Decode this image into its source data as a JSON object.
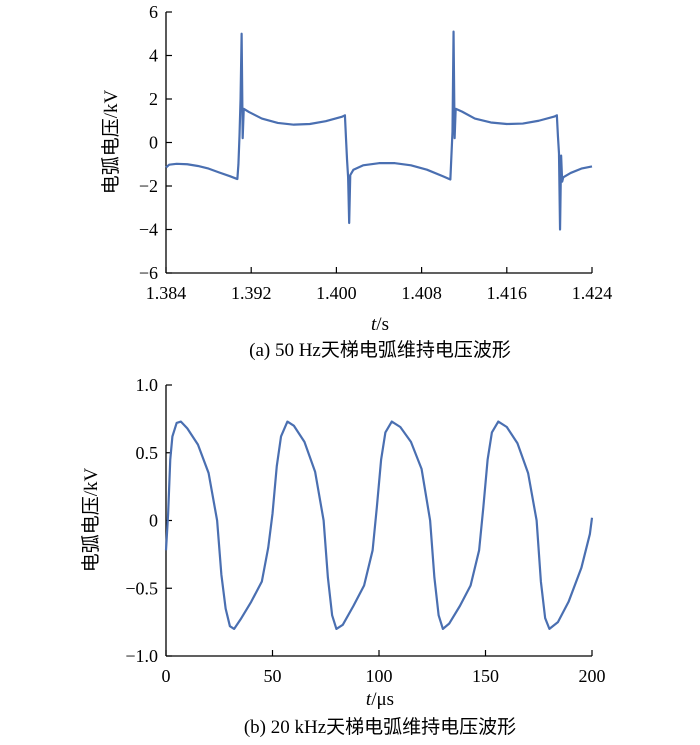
{
  "chart_data": [
    {
      "type": "line",
      "caption": "(a)  50 Hz天梯电弧维持电压波形",
      "ylabel": "电弧电压/kV",
      "xlabel_italic": "t",
      "xlabel_unit": "/s",
      "xlim": [
        1.384,
        1.424
      ],
      "ylim": [
        -6,
        6
      ],
      "xtick_labels": [
        "1.384",
        "1.392",
        "1.400",
        "1.408",
        "1.416",
        "1.424"
      ],
      "ytick_labels": [
        "6",
        "4",
        "2",
        "0",
        "−2",
        "−4",
        "−6"
      ],
      "grid": false,
      "color": "#4a6fb1",
      "series": [
        {
          "values": [
            [
              1.384,
              -1.15
            ],
            [
              1.3843,
              -1.02
            ],
            [
              1.385,
              -0.98
            ],
            [
              1.386,
              -1.0
            ],
            [
              1.387,
              -1.08
            ],
            [
              1.388,
              -1.2
            ],
            [
              1.389,
              -1.38
            ],
            [
              1.39,
              -1.55
            ],
            [
              1.3907,
              -1.68
            ],
            [
              1.3908,
              -1.0
            ],
            [
              1.3909,
              0.3
            ],
            [
              1.391,
              2.0
            ],
            [
              1.3911,
              5.0
            ],
            [
              1.3912,
              0.2
            ],
            [
              1.3913,
              1.55
            ],
            [
              1.3918,
              1.4
            ],
            [
              1.393,
              1.1
            ],
            [
              1.3945,
              0.9
            ],
            [
              1.396,
              0.82
            ],
            [
              1.3975,
              0.85
            ],
            [
              1.399,
              0.98
            ],
            [
              1.4005,
              1.18
            ],
            [
              1.4008,
              1.25
            ],
            [
              1.4009,
              0.2
            ],
            [
              1.401,
              -0.8
            ],
            [
              1.4011,
              -1.6
            ],
            [
              1.4012,
              -3.7
            ],
            [
              1.4013,
              -1.5
            ],
            [
              1.4016,
              -1.25
            ],
            [
              1.4025,
              -1.05
            ],
            [
              1.404,
              -0.95
            ],
            [
              1.4055,
              -0.95
            ],
            [
              1.407,
              -1.05
            ],
            [
              1.4085,
              -1.25
            ],
            [
              1.41,
              -1.55
            ],
            [
              1.4107,
              -1.7
            ],
            [
              1.4108,
              -0.6
            ],
            [
              1.4109,
              0.5
            ],
            [
              1.411,
              5.1
            ],
            [
              1.4111,
              0.2
            ],
            [
              1.4112,
              1.55
            ],
            [
              1.4118,
              1.42
            ],
            [
              1.413,
              1.1
            ],
            [
              1.4145,
              0.92
            ],
            [
              1.416,
              0.85
            ],
            [
              1.4175,
              0.87
            ],
            [
              1.419,
              1.0
            ],
            [
              1.4205,
              1.2
            ],
            [
              1.4207,
              1.25
            ],
            [
              1.4208,
              0.3
            ],
            [
              1.4209,
              -0.5
            ],
            [
              1.421,
              -4.0
            ],
            [
              1.4211,
              -0.6
            ],
            [
              1.4212,
              -1.8
            ],
            [
              1.4213,
              -1.6
            ],
            [
              1.422,
              -1.4
            ],
            [
              1.423,
              -1.2
            ],
            [
              1.424,
              -1.1
            ]
          ]
        }
      ]
    },
    {
      "type": "line",
      "caption": "(b)  20 kHz天梯电弧维持电压波形",
      "ylabel": "电弧电压/kV",
      "xlabel_italic": "t",
      "xlabel_unit": "/μs",
      "xlim": [
        0,
        200
      ],
      "ylim": [
        -1.0,
        1.0
      ],
      "xtick_labels": [
        "0",
        "50",
        "100",
        "150",
        "200"
      ],
      "ytick_labels": [
        "1.0",
        "0.5",
        "0",
        "−0.5",
        "−1.0"
      ],
      "grid": false,
      "color": "#4a6fb1",
      "series": [
        {
          "values": [
            [
              0,
              -0.22
            ],
            [
              1,
              0.05
            ],
            [
              2,
              0.45
            ],
            [
              3,
              0.62
            ],
            [
              5,
              0.72
            ],
            [
              7,
              0.73
            ],
            [
              10,
              0.68
            ],
            [
              15,
              0.56
            ],
            [
              20,
              0.35
            ],
            [
              24,
              0.0
            ],
            [
              26,
              -0.4
            ],
            [
              28,
              -0.65
            ],
            [
              30,
              -0.78
            ],
            [
              32,
              -0.8
            ],
            [
              35,
              -0.73
            ],
            [
              40,
              -0.6
            ],
            [
              45,
              -0.45
            ],
            [
              48,
              -0.2
            ],
            [
              50,
              0.05
            ],
            [
              52,
              0.4
            ],
            [
              54,
              0.62
            ],
            [
              57,
              0.73
            ],
            [
              60,
              0.7
            ],
            [
              65,
              0.58
            ],
            [
              70,
              0.36
            ],
            [
              74,
              0.0
            ],
            [
              76,
              -0.42
            ],
            [
              78,
              -0.7
            ],
            [
              80,
              -0.8
            ],
            [
              83,
              -0.77
            ],
            [
              88,
              -0.63
            ],
            [
              93,
              -0.48
            ],
            [
              97,
              -0.22
            ],
            [
              99,
              0.1
            ],
            [
              101,
              0.45
            ],
            [
              103,
              0.65
            ],
            [
              106,
              0.73
            ],
            [
              110,
              0.69
            ],
            [
              115,
              0.58
            ],
            [
              120,
              0.38
            ],
            [
              124,
              0.0
            ],
            [
              126,
              -0.42
            ],
            [
              128,
              -0.7
            ],
            [
              130,
              -0.8
            ],
            [
              133,
              -0.76
            ],
            [
              138,
              -0.63
            ],
            [
              143,
              -0.48
            ],
            [
              147,
              -0.22
            ],
            [
              149,
              0.1
            ],
            [
              151,
              0.45
            ],
            [
              153,
              0.65
            ],
            [
              156,
              0.73
            ],
            [
              160,
              0.69
            ],
            [
              165,
              0.57
            ],
            [
              170,
              0.35
            ],
            [
              174,
              0.0
            ],
            [
              176,
              -0.45
            ],
            [
              178,
              -0.72
            ],
            [
              180,
              -0.8
            ],
            [
              184,
              -0.75
            ],
            [
              189,
              -0.6
            ],
            [
              195,
              -0.35
            ],
            [
              199,
              -0.1
            ],
            [
              200,
              0.02
            ]
          ]
        }
      ]
    }
  ]
}
